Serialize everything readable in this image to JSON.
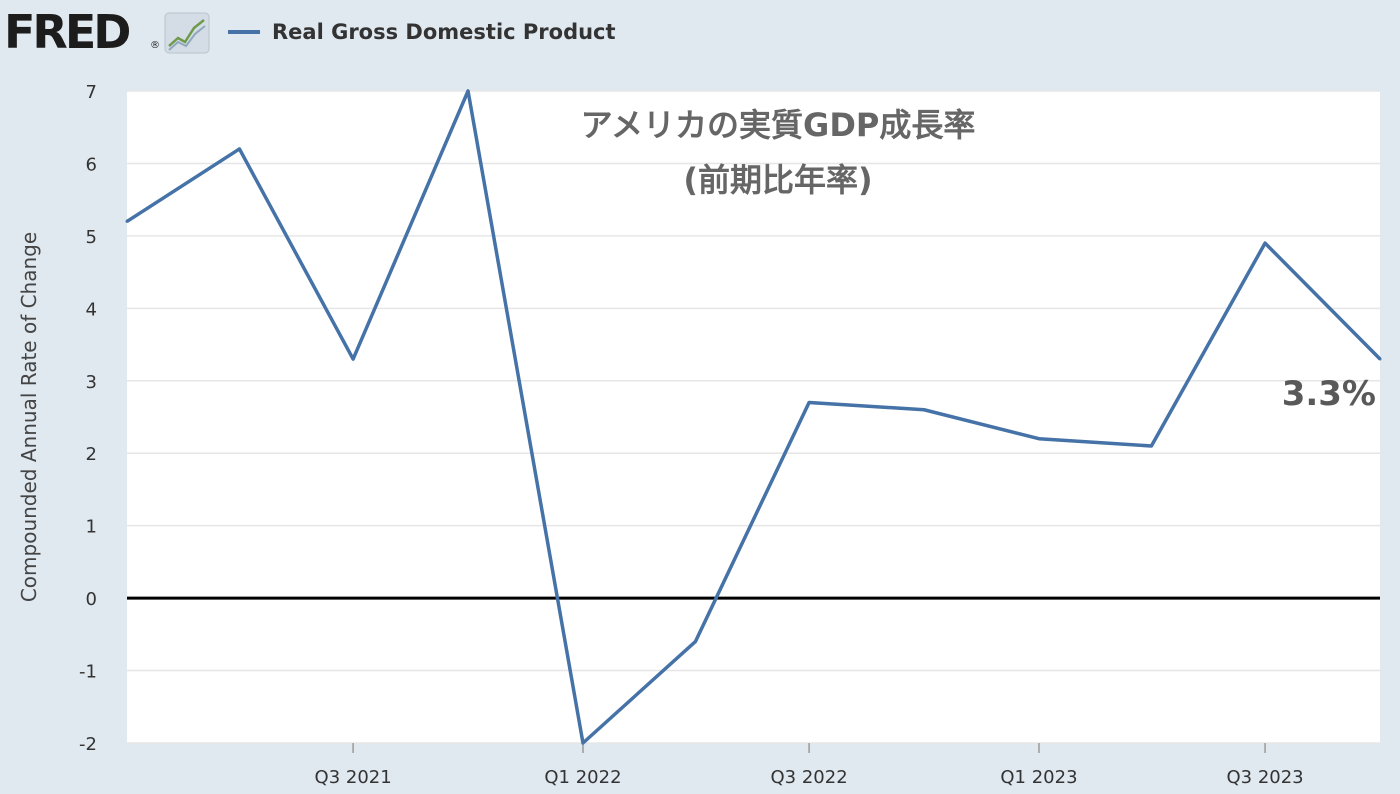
{
  "header": {
    "logo_text": "FRED",
    "logo_mark": "®",
    "logo_icon": "chart-line-icon",
    "legend_label": "Real Gross Domestic Product"
  },
  "colors": {
    "background": "#e1e9f0",
    "plot_background": "#ffffff",
    "series_line": "#4572a7",
    "zero_line": "#000000",
    "grid": "#e6e6e6"
  },
  "chart_data": {
    "type": "line",
    "title": "アメリカの実質GDP成長率",
    "subtitle": "(前期比年率)",
    "ylabel": "Compounded Annual Rate of Change",
    "xlabel": "",
    "ylim": [
      -2,
      7
    ],
    "yticks": [
      -2,
      -1,
      0,
      1,
      2,
      3,
      4,
      5,
      6,
      7
    ],
    "grid": true,
    "legend_position": "top-left",
    "x": [
      "2021-01-01",
      "2021-04-01",
      "2021-07-01",
      "2021-10-01",
      "2022-01-01",
      "2022-04-01",
      "2022-07-01",
      "2022-10-01",
      "2023-01-01",
      "2023-04-01",
      "2023-07-01",
      "2023-10-01"
    ],
    "xticks": [
      {
        "x": "2021-07-01",
        "label": "Q3 2021"
      },
      {
        "x": "2022-01-01",
        "label": "Q1 2022"
      },
      {
        "x": "2022-07-01",
        "label": "Q3 2022"
      },
      {
        "x": "2023-01-01",
        "label": "Q1 2023"
      },
      {
        "x": "2023-07-01",
        "label": "Q3 2023"
      }
    ],
    "series": [
      {
        "name": "Real Gross Domestic Product",
        "values": [
          5.2,
          6.2,
          3.3,
          7.0,
          -2.0,
          -0.6,
          2.7,
          2.6,
          2.2,
          2.1,
          4.9,
          3.3
        ]
      }
    ],
    "annotation": "3.3%"
  }
}
